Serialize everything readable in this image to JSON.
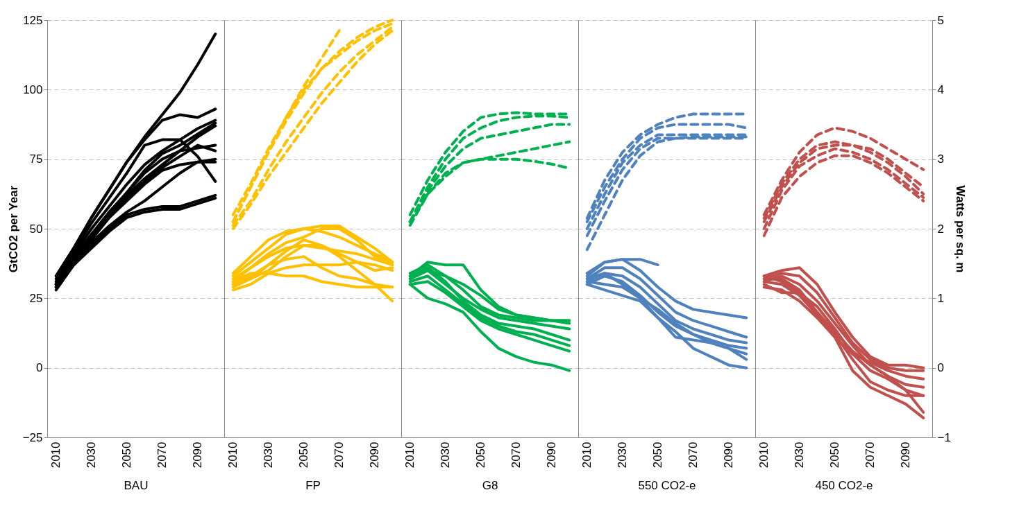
{
  "chart_data": [
    {
      "type": "line",
      "xlabel": "BAU",
      "ylabel": "GtCO2 per Year",
      "x": [
        2010,
        2020,
        2030,
        2040,
        2050,
        2060,
        2070,
        2080,
        2090,
        2100
      ],
      "xlim": [
        2005,
        2105
      ],
      "xticks": [
        2010,
        2030,
        2050,
        2070,
        2090
      ],
      "ylim": [
        -25,
        125
      ],
      "yticks": [
        -25,
        0,
        25,
        50,
        75,
        100,
        125
      ],
      "grid": "y",
      "series": [
        {
          "color": "#000000",
          "values": [
            33,
            43,
            54,
            64,
            74,
            83,
            91,
            99,
            109,
            120
          ]
        },
        {
          "color": "#000000",
          "values": [
            33,
            43,
            54,
            64,
            74,
            82,
            89,
            91,
            90,
            93
          ]
        },
        {
          "color": "#000000",
          "values": [
            32,
            42,
            52,
            61,
            70,
            80,
            82,
            82,
            76,
            67
          ]
        },
        {
          "color": "#000000",
          "values": [
            31,
            41,
            50,
            58,
            66,
            73,
            78,
            82,
            86,
            89
          ]
        },
        {
          "color": "#000000",
          "values": [
            30,
            40,
            48,
            56,
            63,
            70,
            75,
            78,
            79,
            80
          ]
        },
        {
          "color": "#000000",
          "values": [
            30,
            39,
            47,
            54,
            61,
            67,
            72,
            76,
            80,
            78
          ]
        },
        {
          "color": "#000000",
          "values": [
            29,
            38,
            46,
            54,
            60,
            66,
            71,
            73,
            74,
            75
          ]
        },
        {
          "color": "#000000",
          "values": [
            29,
            37,
            45,
            51,
            56,
            60,
            65,
            70,
            74,
            74
          ]
        },
        {
          "color": "#000000",
          "values": [
            28,
            37,
            44,
            50,
            55,
            57,
            58,
            58,
            60,
            62
          ]
        },
        {
          "color": "#000000",
          "values": [
            30,
            37,
            43,
            49,
            54,
            56,
            57,
            57,
            59,
            61
          ]
        },
        {
          "color": "#000000",
          "values": [
            31,
            40,
            48,
            55,
            62,
            68,
            73,
            78,
            83,
            87
          ]
        },
        {
          "color": "#000000",
          "values": [
            30,
            39,
            47,
            55,
            63,
            71,
            77,
            80,
            84,
            88
          ]
        }
      ]
    },
    {
      "type": "line",
      "xlabel": "FP",
      "x": [
        2010,
        2020,
        2030,
        2040,
        2050,
        2060,
        2070,
        2080,
        2090,
        2100
      ],
      "xlim": [
        2005,
        2105
      ],
      "xticks": [
        2010,
        2030,
        2050,
        2070,
        2090
      ],
      "ylim": [
        -25,
        125
      ],
      "yticks": [
        -25,
        0,
        25,
        50,
        75,
        100,
        125
      ],
      "y2lim": [
        -1,
        5
      ],
      "grid": "y",
      "tick_labels": "x",
      "series": [
        {
          "color": "#ffc000",
          "values": [
            33,
            38,
            43,
            48,
            50,
            51,
            51,
            47,
            43,
            38
          ]
        },
        {
          "color": "#ffc000",
          "values": [
            34,
            40,
            46,
            49,
            50,
            49,
            47,
            44,
            41,
            38
          ]
        },
        {
          "color": "#ffc000",
          "values": [
            31,
            36,
            41,
            45,
            47,
            50,
            50,
            46,
            40,
            37
          ]
        },
        {
          "color": "#ffc000",
          "values": [
            30,
            32,
            37,
            42,
            46,
            44,
            41,
            38,
            35,
            36
          ]
        },
        {
          "color": "#ffc000",
          "values": [
            32,
            36,
            40,
            43,
            44,
            43,
            42,
            41,
            39,
            37
          ]
        },
        {
          "color": "#ffc000",
          "values": [
            30,
            33,
            37,
            39,
            40,
            36,
            33,
            32,
            30,
            29
          ]
        },
        {
          "color": "#ffc000",
          "values": [
            28,
            30,
            34,
            36,
            37,
            37,
            37,
            38,
            37,
            35
          ]
        },
        {
          "color": "#ffc000",
          "values": [
            31,
            34,
            34,
            33,
            33,
            31,
            30,
            29,
            29,
            29
          ]
        },
        {
          "color": "#ffc000",
          "values": [
            29,
            32,
            35,
            40,
            44,
            44,
            40,
            35,
            30,
            24
          ]
        },
        {
          "color": "#ffc000",
          "axis": "y2",
          "line_style": "dashed",
          "values": [
            2.1,
            2.6,
            3.1,
            3.6,
            4.05,
            4.45,
            4.85,
            null,
            null,
            null
          ]
        },
        {
          "color": "#ffc000",
          "axis": "y2",
          "line_style": "dashed",
          "values": [
            2.1,
            2.6,
            3.1,
            3.55,
            3.95,
            4.3,
            4.55,
            4.75,
            4.9,
            5.0
          ]
        },
        {
          "color": "#ffc000",
          "axis": "y2",
          "line_style": "dashed",
          "values": [
            2.2,
            2.65,
            3.15,
            3.6,
            4.0,
            4.3,
            4.5,
            4.7,
            4.85,
            4.95
          ]
        },
        {
          "color": "#ffc000",
          "axis": "y2",
          "line_style": "dashed",
          "values": [
            2.05,
            2.4,
            2.85,
            3.25,
            3.6,
            3.95,
            4.25,
            4.5,
            4.7,
            4.9
          ]
        },
        {
          "color": "#ffc000",
          "axis": "y2",
          "line_style": "dashed",
          "values": [
            2.0,
            2.35,
            2.75,
            3.1,
            3.45,
            3.8,
            4.1,
            4.4,
            4.65,
            4.85
          ]
        }
      ]
    },
    {
      "type": "line",
      "xlabel": "G8",
      "x": [
        2010,
        2020,
        2030,
        2040,
        2050,
        2060,
        2070,
        2080,
        2090,
        2100
      ],
      "xlim": [
        2005,
        2105
      ],
      "xticks": [
        2010,
        2030,
        2050,
        2070,
        2090
      ],
      "ylim": [
        -25,
        125
      ],
      "yticks": [
        -25,
        0,
        25,
        50,
        75,
        100,
        125
      ],
      "y2lim": [
        -1,
        5
      ],
      "grid": "y",
      "tick_labels": "x",
      "series": [
        {
          "color": "#00b050",
          "values": [
            33,
            38,
            37,
            37,
            28,
            22,
            19,
            18,
            17,
            17
          ]
        },
        {
          "color": "#00b050",
          "values": [
            34,
            37,
            33,
            28,
            22,
            19,
            18,
            17,
            17,
            16
          ]
        },
        {
          "color": "#00b050",
          "values": [
            32,
            35,
            30,
            25,
            21,
            18,
            17,
            16,
            15,
            14
          ]
        },
        {
          "color": "#00b050",
          "values": [
            33,
            36,
            31,
            24,
            19,
            16,
            15,
            14,
            12,
            10
          ]
        },
        {
          "color": "#00b050",
          "values": [
            31,
            33,
            28,
            23,
            18,
            15,
            13,
            12,
            10,
            8
          ]
        },
        {
          "color": "#00b050",
          "values": [
            30,
            31,
            27,
            22,
            17,
            14,
            12,
            10,
            8,
            6
          ]
        },
        {
          "color": "#00b050",
          "values": [
            30,
            25,
            23,
            20,
            13,
            7,
            4,
            2,
            1,
            -1
          ]
        },
        {
          "color": "#00b050",
          "values": [
            32,
            35,
            33,
            30,
            26,
            21,
            19,
            18,
            17,
            17
          ]
        },
        {
          "color": "#00b050",
          "axis": "y2",
          "line_style": "dashed",
          "values": [
            2.2,
            2.7,
            3.1,
            3.4,
            3.6,
            3.65,
            3.67,
            3.65,
            3.65,
            3.65
          ]
        },
        {
          "color": "#00b050",
          "axis": "y2",
          "line_style": "dashed",
          "values": [
            2.1,
            2.6,
            3.0,
            3.3,
            3.45,
            3.55,
            3.6,
            3.62,
            3.62,
            3.6
          ]
        },
        {
          "color": "#00b050",
          "axis": "y2",
          "line_style": "dashed",
          "values": [
            2.1,
            2.55,
            2.9,
            3.15,
            3.3,
            3.35,
            3.4,
            3.45,
            3.5,
            3.5
          ]
        },
        {
          "color": "#00b050",
          "axis": "y2",
          "line_style": "dashed",
          "values": [
            2.05,
            2.5,
            2.8,
            2.95,
            3.0,
            3.05,
            3.1,
            3.15,
            3.2,
            3.25
          ]
        },
        {
          "color": "#00b050",
          "axis": "y2",
          "line_style": "dashed",
          "values": [
            2.1,
            2.5,
            2.75,
            2.95,
            3.0,
            3.0,
            3.0,
            2.97,
            2.93,
            2.87
          ]
        }
      ]
    },
    {
      "type": "line",
      "xlabel": "550 CO2-e",
      "x": [
        2010,
        2020,
        2030,
        2040,
        2050,
        2060,
        2070,
        2080,
        2090,
        2100
      ],
      "xlim": [
        2005,
        2105
      ],
      "xticks": [
        2010,
        2030,
        2050,
        2070,
        2090
      ],
      "ylim": [
        -25,
        125
      ],
      "yticks": [
        -25,
        0,
        25,
        50,
        75,
        100,
        125
      ],
      "y2lim": [
        -1,
        5
      ],
      "grid": "y",
      "tick_labels": "x",
      "series": [
        {
          "color": "#4f81bd",
          "values": [
            33,
            38,
            39,
            39,
            37,
            null,
            null,
            null,
            null,
            null
          ]
        },
        {
          "color": "#4f81bd",
          "values": [
            34,
            38,
            39,
            35,
            29,
            24,
            21,
            20,
            19,
            18
          ]
        },
        {
          "color": "#4f81bd",
          "values": [
            32,
            36,
            36,
            32,
            26,
            20,
            17,
            15,
            13,
            11
          ]
        },
        {
          "color": "#4f81bd",
          "values": [
            31,
            34,
            33,
            29,
            23,
            17,
            14,
            12,
            10,
            9
          ]
        },
        {
          "color": "#4f81bd",
          "values": [
            30,
            33,
            31,
            26,
            20,
            15,
            12,
            10,
            8,
            7
          ]
        },
        {
          "color": "#4f81bd",
          "values": [
            31,
            30,
            29,
            25,
            18,
            11,
            10,
            9,
            7,
            5
          ]
        },
        {
          "color": "#4f81bd",
          "values": [
            30,
            28,
            26,
            24,
            18,
            13,
            7,
            4,
            1,
            0
          ]
        },
        {
          "color": "#4f81bd",
          "values": [
            32,
            34,
            30,
            25,
            21,
            16,
            12,
            9,
            7,
            3
          ]
        },
        {
          "color": "#4f81bd",
          "axis": "y2",
          "line_style": "dashed",
          "values": [
            2.15,
            2.7,
            3.1,
            3.35,
            3.5,
            3.6,
            3.65,
            3.65,
            3.65,
            3.65
          ]
        },
        {
          "color": "#4f81bd",
          "axis": "y2",
          "line_style": "dashed",
          "values": [
            2.1,
            2.6,
            3.0,
            3.3,
            3.45,
            3.5,
            3.5,
            3.5,
            3.5,
            3.45
          ]
        },
        {
          "color": "#4f81bd",
          "axis": "y2",
          "line_style": "dashed",
          "values": [
            2.0,
            2.5,
            2.95,
            3.2,
            3.35,
            3.35,
            3.35,
            3.35,
            3.35,
            3.35
          ]
        },
        {
          "color": "#4f81bd",
          "axis": "y2",
          "line_style": "dashed",
          "values": [
            1.9,
            2.4,
            2.85,
            3.15,
            3.3,
            3.3,
            3.3,
            3.3,
            3.3,
            3.3
          ]
        },
        {
          "color": "#4f81bd",
          "axis": "y2",
          "line_style": "dashed",
          "values": [
            1.7,
            2.2,
            2.7,
            3.05,
            3.25,
            3.3,
            3.32,
            3.32,
            3.32,
            3.32
          ]
        }
      ]
    },
    {
      "type": "line",
      "xlabel": "450 CO2-e",
      "y2label": "Watts per sq. m",
      "x": [
        2010,
        2020,
        2030,
        2040,
        2050,
        2060,
        2070,
        2080,
        2090,
        2100
      ],
      "xlim": [
        2005,
        2105
      ],
      "xticks": [
        2010,
        2030,
        2050,
        2070,
        2090
      ],
      "ylim": [
        -25,
        125
      ],
      "y2lim": [
        -1,
        5
      ],
      "y2ticks": [
        -1,
        0,
        1,
        2,
        3,
        4,
        5
      ],
      "grid": "y",
      "series": [
        {
          "color": "#c0504d",
          "values": [
            33,
            35,
            36,
            30,
            20,
            11,
            4,
            1,
            1,
            0
          ]
        },
        {
          "color": "#c0504d",
          "values": [
            32,
            34,
            33,
            27,
            18,
            9,
            3,
            0,
            -1,
            -1
          ]
        },
        {
          "color": "#c0504d",
          "values": [
            31,
            33,
            30,
            24,
            16,
            8,
            1,
            -3,
            -6,
            -7
          ]
        },
        {
          "color": "#c0504d",
          "values": [
            30,
            27,
            27,
            22,
            14,
            5,
            -1,
            -4,
            -8,
            -10
          ]
        },
        {
          "color": "#c0504d",
          "values": [
            32,
            32,
            28,
            20,
            12,
            3,
            -5,
            -8,
            -10,
            -10
          ]
        },
        {
          "color": "#c0504d",
          "values": [
            29,
            28,
            24,
            18,
            11,
            -1,
            -7,
            -10,
            -13,
            -18
          ]
        },
        {
          "color": "#c0504d",
          "values": [
            33,
            31,
            27,
            20,
            13,
            6,
            1,
            -3,
            -8,
            -16
          ]
        },
        {
          "color": "#c0504d",
          "values": [
            31,
            30,
            26,
            19,
            11,
            5,
            2,
            -1,
            -3,
            -4
          ]
        },
        {
          "color": "#c0504d",
          "axis": "y2",
          "line_style": "dashed",
          "values": [
            2.2,
            2.7,
            3.1,
            3.35,
            3.45,
            3.4,
            3.3,
            3.15,
            3.0,
            2.85
          ]
        },
        {
          "color": "#c0504d",
          "axis": "y2",
          "line_style": "dashed",
          "values": [
            2.15,
            2.65,
            3.0,
            3.2,
            3.25,
            3.2,
            3.15,
            3.0,
            2.8,
            2.6
          ]
        },
        {
          "color": "#c0504d",
          "axis": "y2",
          "line_style": "dashed",
          "values": [
            2.1,
            2.6,
            2.95,
            3.15,
            3.2,
            3.2,
            3.1,
            2.95,
            2.75,
            2.5
          ]
        },
        {
          "color": "#c0504d",
          "axis": "y2",
          "line_style": "dashed",
          "values": [
            2.0,
            2.55,
            2.9,
            3.05,
            3.15,
            3.1,
            3.0,
            2.85,
            2.65,
            2.45
          ]
        },
        {
          "color": "#c0504d",
          "axis": "y2",
          "line_style": "dashed",
          "values": [
            1.9,
            2.45,
            2.75,
            2.95,
            3.05,
            3.05,
            2.95,
            2.8,
            2.6,
            2.4
          ]
        }
      ]
    }
  ]
}
